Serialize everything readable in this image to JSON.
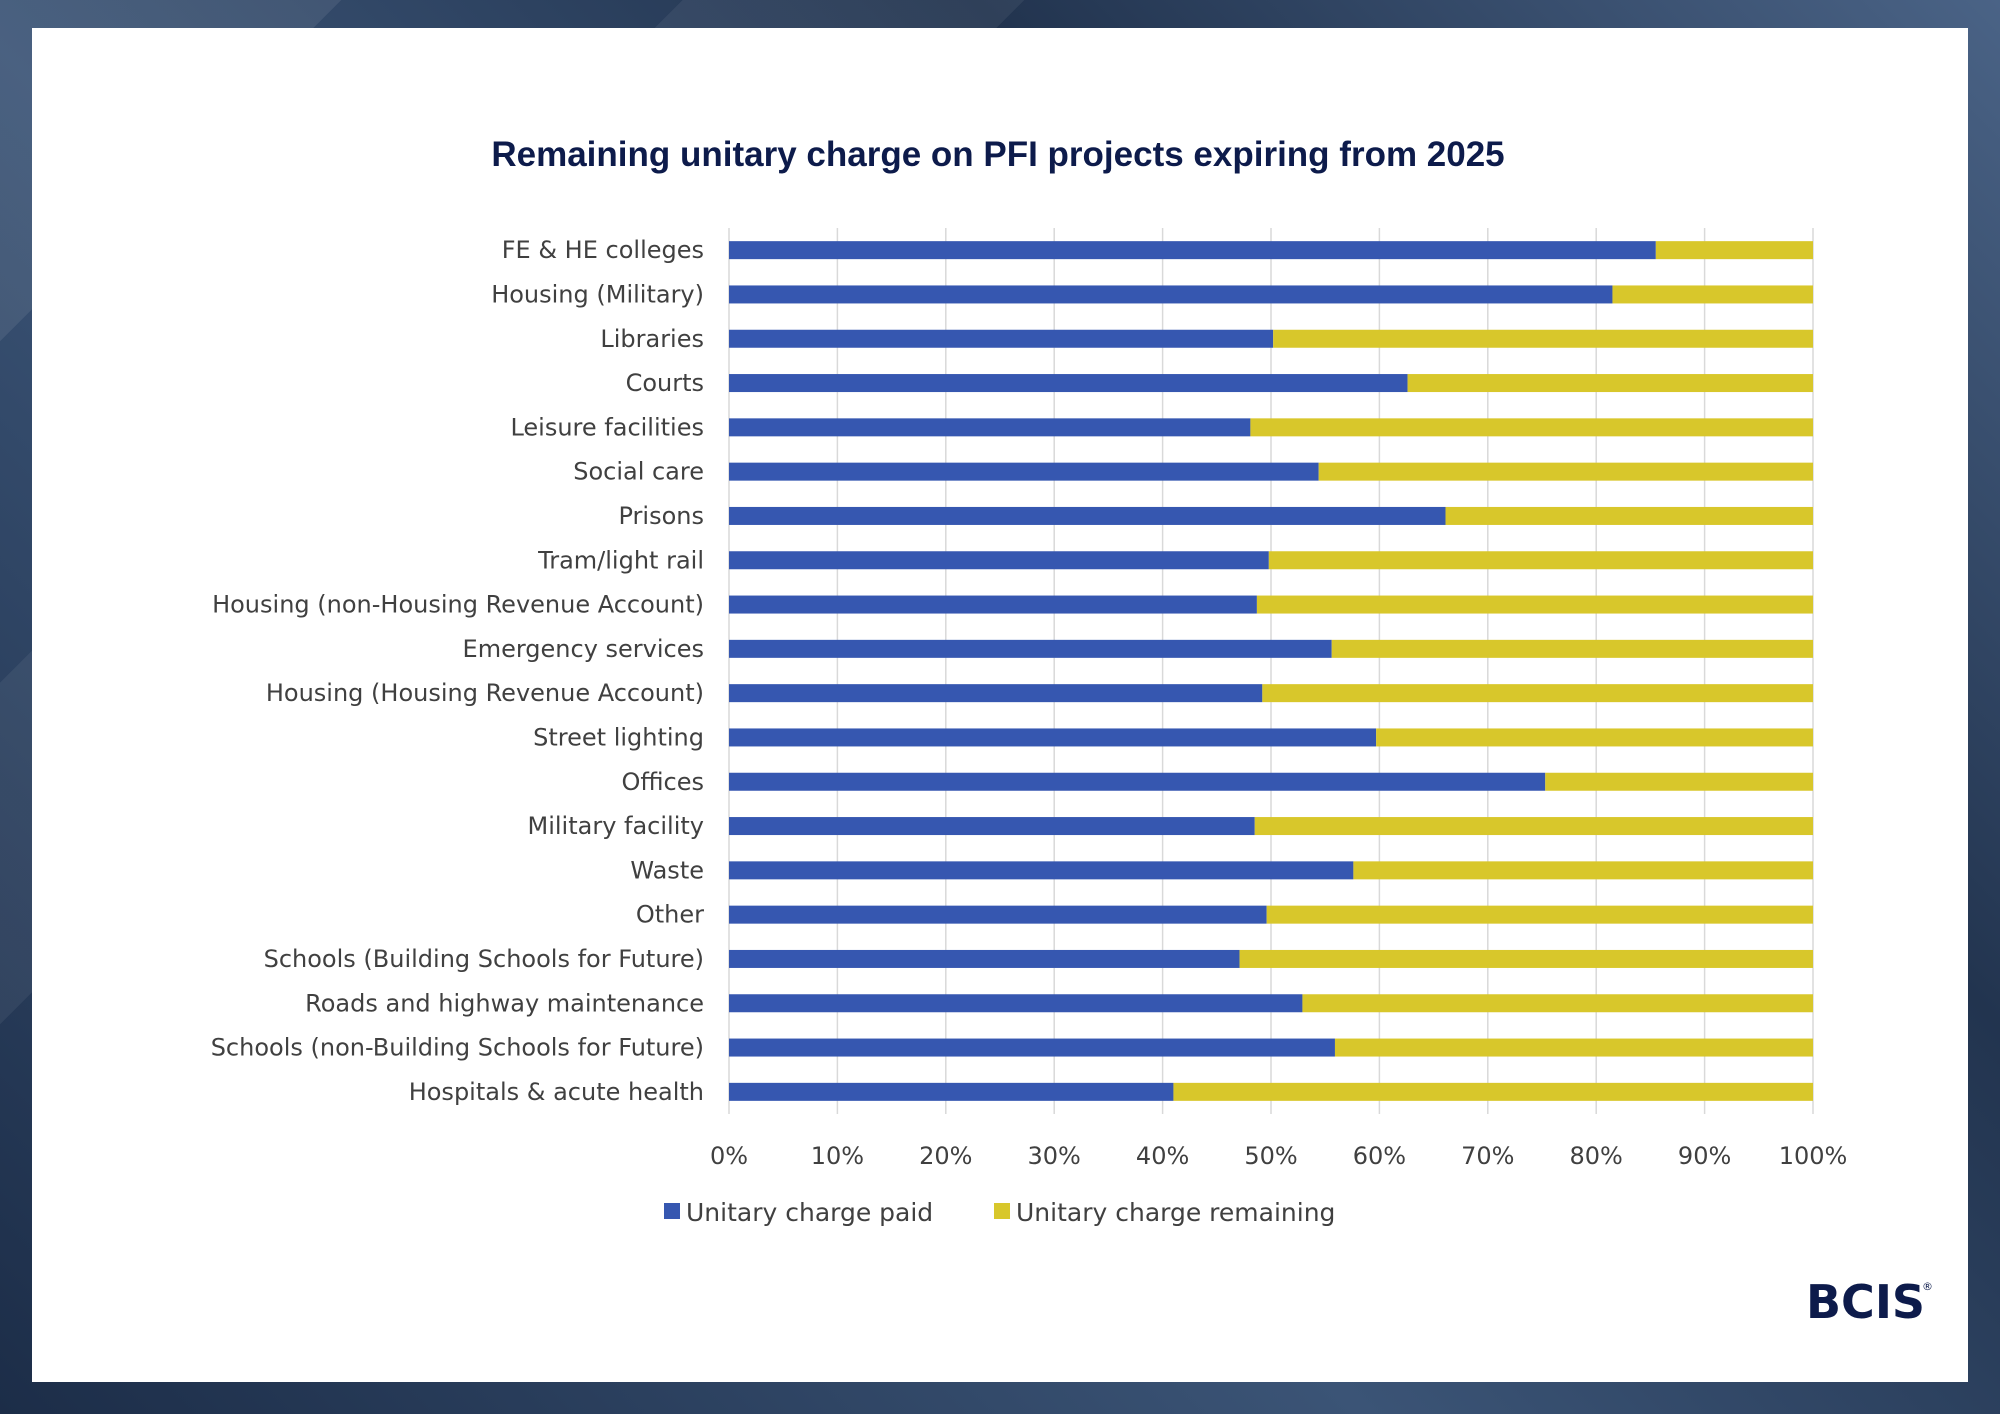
{
  "colors": {
    "paid": "#3657b0",
    "remaining": "#d8c72b",
    "grid": "#d9d9d9",
    "title": "#0d1b4b"
  },
  "chart_data": {
    "type": "bar",
    "orientation": "horizontal",
    "stacked": true,
    "title": "Remaining unitary charge on PFI projects expiring from 2025",
    "xlim": [
      0,
      100
    ],
    "x_ticks": [
      "0%",
      "10%",
      "20%",
      "30%",
      "40%",
      "50%",
      "60%",
      "70%",
      "80%",
      "90%",
      "100%"
    ],
    "grid": true,
    "legend_position": "bottom",
    "categories": [
      "FE & HE colleges",
      "Housing (Military)",
      "Libraries",
      "Courts",
      "Leisure facilities",
      "Social care",
      "Prisons",
      "Tram/light rail",
      "Housing (non-Housing Revenue Account)",
      "Emergency services",
      "Housing (Housing Revenue Account)",
      "Street lighting",
      "Offices",
      "Military facility",
      "Waste",
      "Other",
      "Schools (Building Schools for Future)",
      "Roads and highway maintenance",
      "Schools (non-Building Schools for Future)",
      "Hospitals & acute health"
    ],
    "series": [
      {
        "name": "Unitary charge paid",
        "values": [
          85.5,
          81.5,
          50.2,
          62.6,
          48.1,
          54.4,
          66.1,
          49.8,
          48.7,
          55.6,
          49.2,
          59.7,
          75.3,
          48.5,
          57.6,
          49.6,
          47.1,
          52.9,
          55.9,
          41.0
        ]
      },
      {
        "name": "Unitary charge remaining",
        "values": [
          14.5,
          18.5,
          49.8,
          37.4,
          51.9,
          45.6,
          33.9,
          50.2,
          51.3,
          44.4,
          50.8,
          40.3,
          24.7,
          51.5,
          42.4,
          50.4,
          52.9,
          47.1,
          44.1,
          59.0
        ]
      }
    ]
  },
  "logo": {
    "text": "BCIS",
    "mark": "®"
  }
}
